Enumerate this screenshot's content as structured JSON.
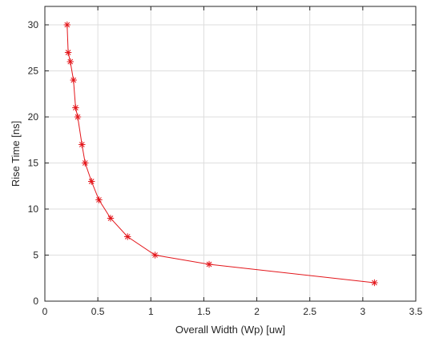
{
  "chart_data": {
    "type": "line",
    "xlabel": "Overall Width (Wp) [uw]",
    "ylabel": "Rise Time [ns]",
    "xlim": [
      0,
      3.5
    ],
    "ylim": [
      0,
      32
    ],
    "xticks": [
      0,
      0.5,
      1,
      1.5,
      2,
      2.5,
      3,
      3.5
    ],
    "yticks": [
      0,
      5,
      10,
      15,
      20,
      25,
      30
    ],
    "xtick_labels": [
      "0",
      "0.5",
      "1",
      "1.5",
      "2",
      "2.5",
      "3",
      "3.5"
    ],
    "ytick_labels": [
      "0",
      "5",
      "10",
      "15",
      "20",
      "25",
      "30"
    ],
    "grid": true,
    "marker": "asterisk",
    "series": [
      {
        "color": "#e3161b",
        "x": [
          0.21,
          0.22,
          0.24,
          0.27,
          0.29,
          0.31,
          0.35,
          0.38,
          0.44,
          0.51,
          0.62,
          0.78,
          1.04,
          1.55,
          3.11
        ],
        "y": [
          30,
          27,
          26,
          24,
          21,
          20,
          17,
          15,
          13,
          11,
          9,
          7,
          5,
          4,
          2
        ]
      }
    ]
  }
}
